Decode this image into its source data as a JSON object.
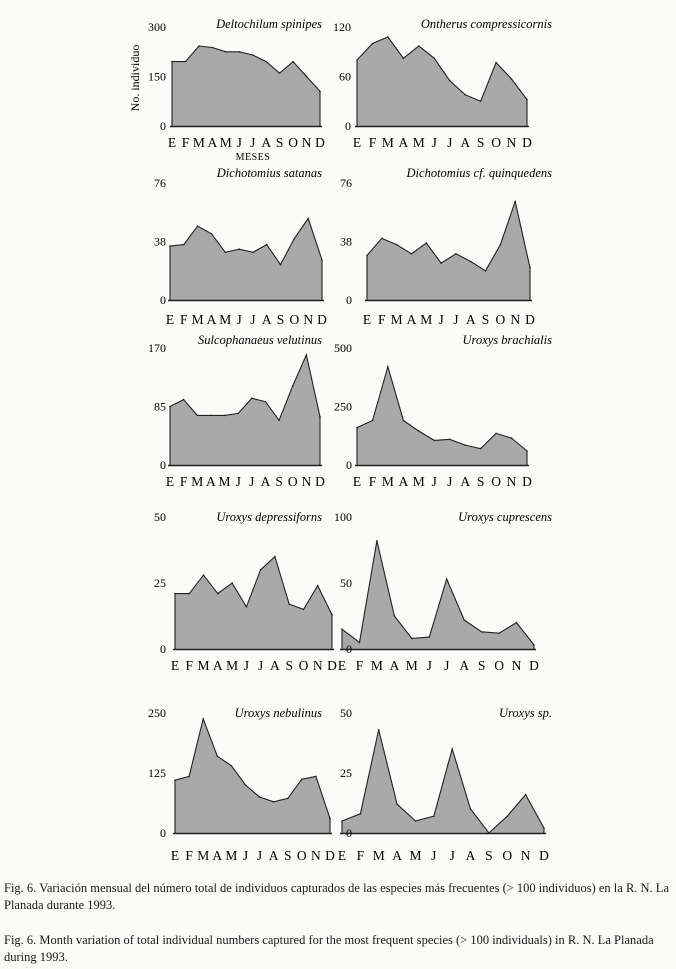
{
  "months": [
    "E",
    "F",
    "M",
    "A",
    "M",
    "J",
    "J",
    "A",
    "S",
    "O",
    "N",
    "D"
  ],
  "axis_labels": {
    "y": "No. individuo",
    "x": "MESES"
  },
  "colors": {
    "fill": "#a9a9a9",
    "stroke": "#222222"
  },
  "chart_data": [
    {
      "type": "area",
      "title": "Deltochilum spinipes",
      "y_ticks": [
        0,
        150,
        300
      ],
      "ylim": [
        0,
        300
      ],
      "x": [
        "E",
        "F",
        "M",
        "A",
        "M",
        "J",
        "J",
        "A",
        "S",
        "O",
        "N",
        "D"
      ],
      "values": [
        195,
        195,
        242,
        238,
        225,
        225,
        215,
        195,
        160,
        195,
        150,
        105
      ]
    },
    {
      "type": "area",
      "title": "Ontherus compressicornis",
      "y_ticks": [
        0,
        60,
        120
      ],
      "ylim": [
        0,
        120
      ],
      "x": [
        "E",
        "F",
        "M",
        "A",
        "M",
        "J",
        "J",
        "A",
        "S",
        "O",
        "N",
        "D"
      ],
      "values": [
        80,
        100,
        108,
        82,
        97,
        82,
        55,
        38,
        30,
        77,
        57,
        32
      ]
    },
    {
      "type": "area",
      "title": "Dichotomius satanas",
      "y_ticks": [
        0,
        38,
        76
      ],
      "ylim": [
        0,
        76
      ],
      "x": [
        "E",
        "F",
        "M",
        "A",
        "M",
        "J",
        "J",
        "A",
        "S",
        "O",
        "N",
        "D"
      ],
      "values": [
        35,
        36,
        48,
        43,
        31,
        33,
        31,
        36,
        23,
        40,
        53,
        26
      ]
    },
    {
      "type": "area",
      "title": "Dichotomius cf. quinquedens",
      "y_ticks": [
        0,
        38,
        76
      ],
      "ylim": [
        0,
        76
      ],
      "x": [
        "E",
        "F",
        "M",
        "A",
        "M",
        "J",
        "J",
        "A",
        "S",
        "O",
        "N",
        "D"
      ],
      "values": [
        29,
        40,
        36,
        30,
        37,
        24,
        30,
        25,
        19,
        36,
        64,
        21
      ]
    },
    {
      "type": "area",
      "title": "Sulcophanaeus velutinus",
      "y_ticks": [
        0,
        85,
        170
      ],
      "ylim": [
        0,
        170
      ],
      "x": [
        "E",
        "F",
        "M",
        "A",
        "M",
        "J",
        "J",
        "A",
        "S",
        "O",
        "N",
        "D"
      ],
      "values": [
        85,
        95,
        72,
        72,
        72,
        75,
        97,
        92,
        65,
        115,
        160,
        70
      ]
    },
    {
      "type": "area",
      "title": "Uroxys brachialis",
      "y_ticks": [
        0,
        250,
        500
      ],
      "ylim": [
        0,
        500
      ],
      "x": [
        "E",
        "F",
        "M",
        "A",
        "M",
        "J",
        "J",
        "A",
        "S",
        "O",
        "N",
        "D"
      ],
      "values": [
        160,
        190,
        420,
        190,
        145,
        105,
        110,
        85,
        70,
        135,
        115,
        60
      ]
    },
    {
      "type": "area",
      "title": "Uroxys depressiforns",
      "y_ticks": [
        0,
        25,
        50
      ],
      "ylim": [
        0,
        50
      ],
      "x": [
        "E",
        "F",
        "M",
        "A",
        "M",
        "J",
        "J",
        "A",
        "S",
        "O",
        "N",
        "D"
      ],
      "values": [
        21,
        21,
        28,
        21,
        25,
        16,
        30,
        35,
        17,
        15,
        24,
        13
      ]
    },
    {
      "type": "area",
      "title": "Uroxys cuprescens",
      "y_ticks": [
        0,
        50,
        100
      ],
      "ylim": [
        0,
        100
      ],
      "x": [
        "E",
        "F",
        "M",
        "A",
        "M",
        "J",
        "J",
        "A",
        "S",
        "O",
        "N",
        "D"
      ],
      "values": [
        15,
        5,
        82,
        25,
        8,
        9,
        53,
        22,
        13,
        12,
        20,
        3
      ]
    },
    {
      "type": "area",
      "title": "Uroxys nebulinus",
      "y_ticks": [
        0,
        125,
        250
      ],
      "ylim": [
        0,
        250
      ],
      "x": [
        "E",
        "F",
        "M",
        "A",
        "M",
        "J",
        "J",
        "A",
        "S",
        "O",
        "N",
        "D"
      ],
      "values": [
        110,
        118,
        238,
        160,
        140,
        100,
        75,
        65,
        72,
        112,
        118,
        30
      ]
    },
    {
      "type": "area",
      "title": "Uroxys sp.",
      "y_ticks": [
        0,
        25,
        50
      ],
      "ylim": [
        0,
        50
      ],
      "x": [
        "E",
        "F",
        "M",
        "A",
        "M",
        "J",
        "J",
        "A",
        "S",
        "O",
        "N",
        "D"
      ],
      "values": [
        5,
        8,
        43,
        12,
        5,
        7,
        35,
        10,
        0,
        7,
        16,
        2
      ]
    }
  ],
  "captions": {
    "es": "Fig. 6. Variación mensual del número total de individuos capturados de las especies más frecuentes (> 100 individuos) en la R. N. La Planada durante 1993.",
    "en": "Fig. 6. Month variation of total individual numbers captured for the most frequent species (> 100 individuals) in R. N. La Planada during 1993."
  }
}
